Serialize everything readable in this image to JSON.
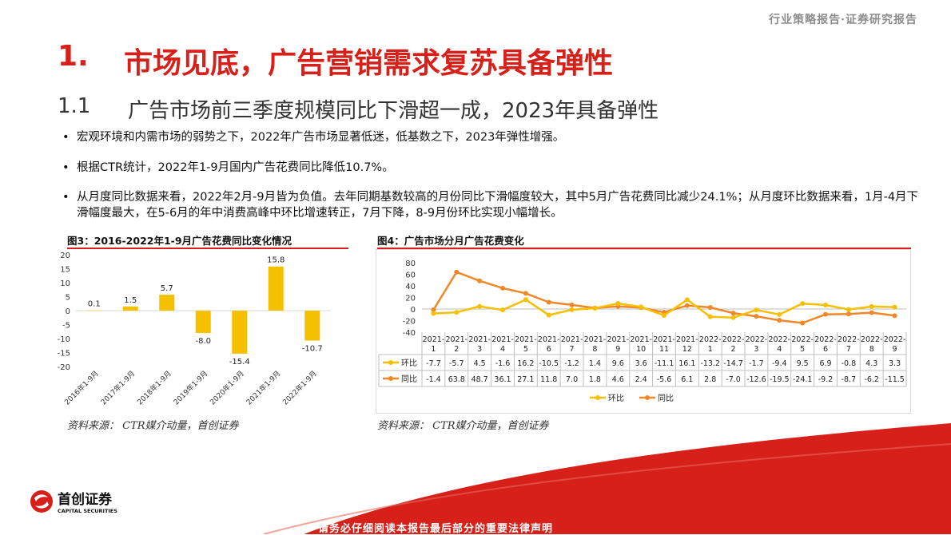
{
  "header": {
    "tag": "行业策略报告·证券研究报告"
  },
  "section": {
    "num": "1.",
    "title": "市场见底，广告营销需求复苏具备弹性"
  },
  "subsection": {
    "num": "1.1",
    "title": "广告市场前三季度规模同比下滑超一成，2023年具备弹性"
  },
  "bullets": [
    {
      "dot": "•",
      "text": "宏观环境和内需市场的弱势之下，2022年广告市场显著低迷，低基数之下，2023年弹性增强。"
    },
    {
      "dot": "•",
      "text": "根据CTR统计，2022年1-9月国内广告花费同比降低10.7%。"
    },
    {
      "dot": "•",
      "text": "从月度同比数据来看，2022年2月-9月皆为负值。去年同期基数较高的月份同比下滑幅度较大，其中5月广告花费同比减少24.1%；从月度环比数据来看，1月-4月下滑幅度最大，在5-6月的年中消费高峰中环比增速转正，7月下降，8-9月份环比实现小幅增长。"
    }
  ],
  "fig3": {
    "title": "图3：2016-2022年1-9月广告花费同比变化情况",
    "source": "资料来源：  CTR媒介动量，首创证券"
  },
  "fig4": {
    "title": "图4：广告市场分月广告花费变化",
    "source": "资料来源：  CTR媒介动量，首创证券"
  },
  "chart_data": [
    {
      "type": "bar",
      "categories": [
        "2016年1-9月",
        "2017年1-9月",
        "2018年1-9月",
        "2019年1-9月",
        "2020年1-9月",
        "2021年1-9月",
        "2022年1-9月"
      ],
      "values": [
        0.1,
        1.5,
        5.7,
        -8.0,
        -15.4,
        15.8,
        -10.7
      ],
      "data_labels": [
        "0.1",
        "1.5",
        "5.7",
        "-8.0",
        "-15.4",
        "15.8",
        "-10.7"
      ],
      "ylim": [
        -20,
        20
      ],
      "yticks": [
        "20",
        "15",
        "10",
        "5",
        "0",
        "-5",
        "-10",
        "-15",
        "-20"
      ],
      "color": "#f5c000",
      "grid": false
    },
    {
      "type": "line",
      "categories": [
        "2021-1",
        "2021-2",
        "2021-3",
        "2021-4",
        "2021-5",
        "2021-6",
        "2021-7",
        "2021-8",
        "2021-9",
        "2021-10",
        "2021-11",
        "2021-12",
        "2022-1",
        "2022-2",
        "2022-3",
        "2022-4",
        "2022-5",
        "2022-6",
        "2022-7",
        "2022-8",
        "2022-9"
      ],
      "series": [
        {
          "name": "环比",
          "color": "#f5c000",
          "values": [
            -7.7,
            -5.7,
            4.5,
            -1.6,
            16.2,
            -10.5,
            -1.2,
            1.4,
            9.6,
            3.6,
            -11.1,
            16.1,
            -13.2,
            -14.7,
            -1.7,
            -9.4,
            9.5,
            6.9,
            -0.8,
            4.3,
            3.3
          ],
          "labels": [
            "-7.7",
            "-5.7",
            "4.5",
            "-1.6",
            "16.2",
            "-10.5",
            "-1.2",
            "1.4",
            "9.6",
            "3.6",
            "-11.1",
            "16.1",
            "-13.2",
            "-14.7",
            "-1.7",
            "-9.4",
            "9.5",
            "6.9",
            "-0.8",
            "4.3",
            "3.3"
          ]
        },
        {
          "name": "同比",
          "color": "#f0882a",
          "values": [
            -1.4,
            63.8,
            48.7,
            36.1,
            27.1,
            11.8,
            7.0,
            1.8,
            4.6,
            2.4,
            -5.6,
            6.1,
            2.8,
            -7.0,
            -12.6,
            -19.5,
            -24.1,
            -9.2,
            -8.7,
            -6.2,
            -11.5
          ],
          "labels": [
            "-1.4",
            "63.8",
            "48.7",
            "36.1",
            "27.1",
            "11.8",
            "7.0",
            "1.8",
            "4.6",
            "2.4",
            "-5.6",
            "6.1",
            "2.8",
            "-7.0",
            "-12.6",
            "-19.5",
            "-24.1",
            "-9.2",
            "-8.7",
            "-6.2",
            "-11.5"
          ]
        }
      ],
      "ylim": [
        -40,
        80
      ],
      "yticks": [
        "80",
        "60",
        "40",
        "20",
        "0",
        "-20",
        "-40"
      ],
      "legend": "bottom",
      "data_table": true,
      "grid": false
    }
  ],
  "logo": {
    "cn": "首创证券",
    "en": "CAPITAL SECURITIES"
  },
  "footer": {
    "text": "请务必仔细阅读本报告最后部分的重要法律声明"
  }
}
